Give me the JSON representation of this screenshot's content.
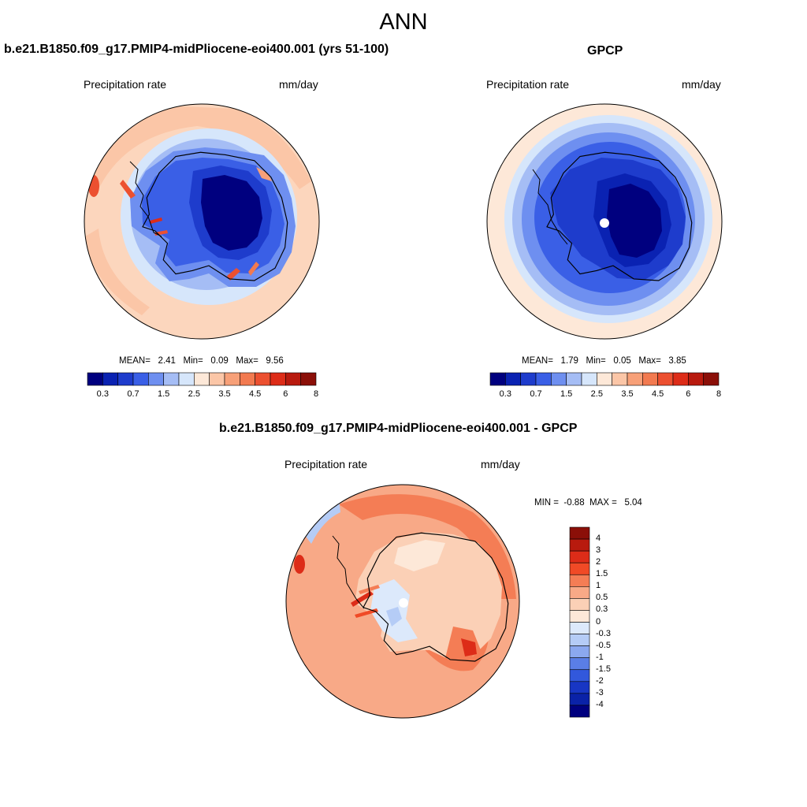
{
  "figure": {
    "title": "ANN"
  },
  "panels": [
    {
      "title": "b.e21.B1850.f09_g17.PMIP4-midPliocene-eoi400.001 (yrs 51-100)",
      "left_label": "Precipitation rate",
      "right_label": "mm/day",
      "stats": {
        "mean_label": "MEAN=",
        "mean": "2.41",
        "min_label": "Min=",
        "min": "0.09",
        "max_label": "Max=",
        "max": "9.56"
      },
      "colorbar_ticks": [
        "0.3",
        "0.7",
        "1.5",
        "2.5",
        "3.5",
        "4.5",
        "6",
        "8"
      ]
    },
    {
      "title": "GPCP",
      "left_label": "Precipitation rate",
      "right_label": "mm/day",
      "stats": {
        "mean_label": "MEAN=",
        "mean": "1.79",
        "min_label": "Min=",
        "min": "0.05",
        "max_label": "Max=",
        "max": "3.85"
      },
      "colorbar_ticks": [
        "0.3",
        "0.7",
        "1.5",
        "2.5",
        "3.5",
        "4.5",
        "6",
        "8"
      ]
    },
    {
      "title": "b.e21.B1850.f09_g17.PMIP4-midPliocene-eoi400.001 - GPCP",
      "left_label": "Precipitation rate",
      "right_label": "mm/day",
      "stats": {
        "min_label": "MIN =",
        "min": "-0.88",
        "max_label": "MAX =",
        "max": "5.04"
      },
      "colorbar_ticks": [
        "4",
        "3",
        "2",
        "1.5",
        "1",
        "0.5",
        "0.3",
        "0",
        "-0.3",
        "-0.5",
        "-1",
        "-1.5",
        "-2",
        "-3",
        "-4"
      ]
    }
  ],
  "colors": {
    "abs_scale": [
      "#00007f",
      "#0a22b2",
      "#1e3ccc",
      "#3a5fe6",
      "#6e8ff0",
      "#a5bdf5",
      "#d6e6fb",
      "#fde8d8",
      "#fbc6a7",
      "#f7a078",
      "#f27a50",
      "#ec5030",
      "#dd2c18",
      "#b81a0e",
      "#8b0f08"
    ],
    "diff_scale": [
      "#8b0f08",
      "#b81a0e",
      "#dd2c18",
      "#f04a26",
      "#f47d55",
      "#f8a987",
      "#fbd0b6",
      "#fde8d8",
      "#dce9fb",
      "#b5ccf6",
      "#8ba8ef",
      "#5a7ee6",
      "#3258dc",
      "#1836c4",
      "#0a22a8",
      "#00007f"
    ]
  },
  "chart_data": [
    {
      "type": "map",
      "title": "b.e21.B1850.f09_g17.PMIP4-midPliocene-eoi400.001 (yrs 51-100)",
      "variable": "Precipitation rate",
      "units": "mm/day",
      "levels": [
        0.3,
        0.7,
        1.5,
        2.5,
        3.5,
        4.5,
        6,
        8
      ],
      "mean": 2.41,
      "min": 0.09,
      "max": 9.56
    },
    {
      "type": "map",
      "title": "GPCP",
      "variable": "Precipitation rate",
      "units": "mm/day",
      "levels": [
        0.3,
        0.7,
        1.5,
        2.5,
        3.5,
        4.5,
        6,
        8
      ],
      "mean": 1.79,
      "min": 0.05,
      "max": 3.85
    },
    {
      "type": "map",
      "title": "b.e21.B1850.f09_g17.PMIP4-midPliocene-eoi400.001 - GPCP",
      "variable": "Precipitation rate",
      "units": "mm/day",
      "levels": [
        -4,
        -3,
        -2,
        -1.5,
        -1,
        -0.5,
        -0.3,
        0,
        0.3,
        0.5,
        1,
        1.5,
        2,
        3,
        4
      ],
      "min": -0.88,
      "max": 5.04
    }
  ]
}
